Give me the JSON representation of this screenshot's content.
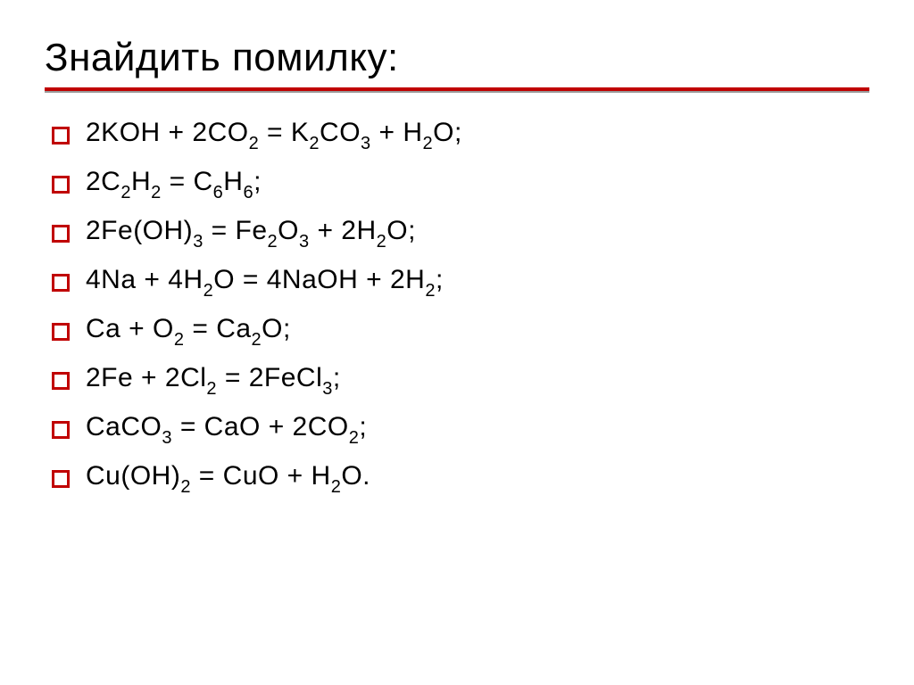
{
  "slide": {
    "title": "Знайдить помилку:",
    "title_fontsize": 44,
    "title_color": "#000000",
    "underline_color_primary": "#c00000",
    "underline_color_secondary": "#999999",
    "background_color": "#ffffff",
    "bullet_border_color": "#c00000",
    "bullet_border_width": 3,
    "bullet_size": 20,
    "equation_fontsize": 30,
    "equation_color": "#000000",
    "subscript_fontsize": 20,
    "equations": [
      {
        "display": "2KOH + 2CO₂ = K₂CO₃ + H₂O;",
        "parts": [
          {
            "t": "2KOH + 2CO"
          },
          {
            "sub": "2"
          },
          {
            "t": " = K"
          },
          {
            "sub": "2"
          },
          {
            "t": "CO"
          },
          {
            "sub": "3"
          },
          {
            "t": " + H"
          },
          {
            "sub": "2"
          },
          {
            "t": "O;"
          }
        ]
      },
      {
        "display": "2C₂H₂ = C₆H₆;",
        "parts": [
          {
            "t": "2C"
          },
          {
            "sub": "2"
          },
          {
            "t": "H"
          },
          {
            "sub": "2"
          },
          {
            "t": " = C"
          },
          {
            "sub": "6"
          },
          {
            "t": "H"
          },
          {
            "sub": "6"
          },
          {
            "t": ";"
          }
        ]
      },
      {
        "display": "2Fe(OH)₃ = Fe₂O₃ + 2H₂O;",
        "parts": [
          {
            "t": "2Fe(OH)"
          },
          {
            "sub": "3"
          },
          {
            "t": " = Fe"
          },
          {
            "sub": "2"
          },
          {
            "t": "O"
          },
          {
            "sub": "3"
          },
          {
            "t": " + 2H"
          },
          {
            "sub": "2"
          },
          {
            "t": "O;"
          }
        ]
      },
      {
        "display": "4Na + 4H₂O = 4NaOH + 2H₂;",
        "parts": [
          {
            "t": "4Na + 4H"
          },
          {
            "sub": "2"
          },
          {
            "t": "O = 4NaOH + 2H"
          },
          {
            "sub": "2"
          },
          {
            "t": ";"
          }
        ]
      },
      {
        "display": "Ca + O₂ = Ca₂O;",
        "parts": [
          {
            "t": "Ca + O"
          },
          {
            "sub": "2"
          },
          {
            "t": " = Ca"
          },
          {
            "sub": "2"
          },
          {
            "t": "O;"
          }
        ]
      },
      {
        "display": "2Fe + 2Cl₂ = 2FeCl₃;",
        "parts": [
          {
            "t": "2Fe + 2Cl"
          },
          {
            "sub": "2"
          },
          {
            "t": " = 2FeCl"
          },
          {
            "sub": "3"
          },
          {
            "t": ";"
          }
        ]
      },
      {
        "display": "CaCO₃ = CaO + 2CO₂;",
        "parts": [
          {
            "t": "CaCO"
          },
          {
            "sub": "3"
          },
          {
            "t": " = CaO + 2CO"
          },
          {
            "sub": "2"
          },
          {
            "t": ";"
          }
        ]
      },
      {
        "display": "Cu(OH)₂ = CuO + H₂O.",
        "parts": [
          {
            "t": "Cu(OH)"
          },
          {
            "sub": "2"
          },
          {
            "t": " = CuO + H"
          },
          {
            "sub": "2"
          },
          {
            "t": "O."
          }
        ]
      }
    ]
  }
}
